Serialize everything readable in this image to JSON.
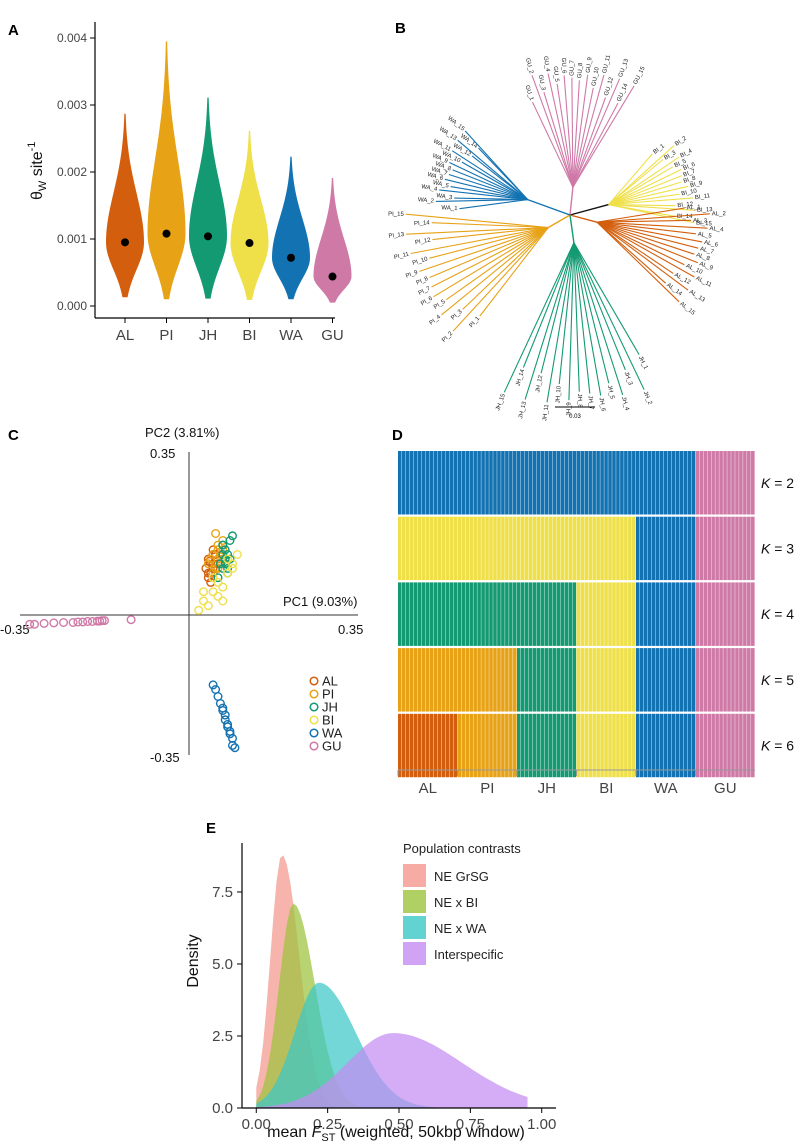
{
  "colors": {
    "AL": "#d35f0e",
    "PI": "#e7a216",
    "JH": "#149a72",
    "BI": "#efe04a",
    "WA": "#1372b2",
    "GU": "#cf79a7"
  },
  "panels": {
    "A": "A",
    "B": "B",
    "C": "C",
    "D": "D",
    "E": "E"
  },
  "chart_data": [
    {
      "id": "A",
      "type": "violin",
      "ylabel_main": "θ",
      "ylabel_sub": "W",
      "ylabel_rest": " site",
      "ylabel_sup": "-1",
      "ylim": [
        0,
        0.004
      ],
      "yticks": [
        "0.000",
        "0.001",
        "0.002",
        "0.003",
        "0.004"
      ],
      "categories": [
        "AL",
        "PI",
        "JH",
        "BI",
        "WA",
        "GU"
      ],
      "medians": [
        0.00095,
        0.00108,
        0.00104,
        0.00094,
        0.00072,
        0.00044
      ],
      "min": [
        0.00013,
        0.0001,
        0.00011,
        9e-05,
        0.0001,
        5e-05
      ],
      "max": [
        0.00287,
        0.00395,
        0.00311,
        0.00262,
        0.00223,
        0.00191
      ]
    },
    {
      "id": "B",
      "type": "tree",
      "scale_label": "0.03",
      "groups": [
        {
          "name": "GU",
          "tips": [
            "GU_1",
            "GU_2",
            "GU_3",
            "GU_4",
            "GU_5",
            "GU_6",
            "GU_7",
            "GU_8",
            "GU_9",
            "GU_10",
            "GU_11",
            "GU_12",
            "GU_13",
            "GU_14",
            "GU_15"
          ]
        },
        {
          "name": "BI",
          "tips": [
            "BI_1",
            "BI_2",
            "BI_3",
            "BI_4",
            "BI_5",
            "BI_6",
            "BI_7",
            "BI_8",
            "BI_9",
            "BI_10",
            "BI_11",
            "BI_12",
            "BI_13",
            "BI_14",
            "BI_15"
          ]
        },
        {
          "name": "AL",
          "tips": [
            "AL_1",
            "AL_2",
            "AL_3",
            "AL_4",
            "AL_5",
            "AL_6",
            "AL_7",
            "AL_8",
            "AL_9",
            "AL_10",
            "AL_11",
            "AL_12",
            "AL_13",
            "AL_14",
            "AL_15"
          ]
        },
        {
          "name": "JH",
          "tips": [
            "JH_1",
            "JH_2",
            "JH_3",
            "JH_4",
            "JH_5",
            "JH_6",
            "JH_7",
            "JH_8",
            "JH_9",
            "JH_10",
            "JH_11",
            "JH_12",
            "JH_13",
            "JH_14",
            "JH_15"
          ]
        },
        {
          "name": "PI",
          "tips": [
            "PI_1",
            "PI_2",
            "PI_3",
            "PI_4",
            "PI_5",
            "PI_6",
            "PI_7",
            "PI_8",
            "PI_9",
            "PI_10",
            "PI_11",
            "PI_12",
            "PI_13",
            "PI_14",
            "PI_15"
          ]
        },
        {
          "name": "WA",
          "tips": [
            "WA_1",
            "WA_2",
            "WA_3",
            "WA_4",
            "WA_5",
            "WA_6",
            "WA_7",
            "WA_8",
            "WA_9",
            "WA_10",
            "WA_11",
            "WA_12",
            "WA_13",
            "WA_14",
            "WA_15"
          ]
        }
      ]
    },
    {
      "id": "C",
      "type": "scatter",
      "xlabel": "PC1 (9.03%)",
      "ylabel": "PC2 (3.81%)",
      "xlim": [
        -0.35,
        0.35
      ],
      "ylim": [
        -0.35,
        0.35
      ],
      "xtick_labels": [
        "-0.35",
        "0.35"
      ],
      "ytick_labels": [
        "0.35",
        "-0.35"
      ],
      "legend": [
        "AL",
        "PI",
        "JH",
        "BI",
        "WA",
        "GU"
      ],
      "series": [
        {
          "name": "AL",
          "x": [
            0.04,
            0.05,
            0.055,
            0.045,
            0.06,
            0.05,
            0.04,
            0.035,
            0.06,
            0.05,
            0.045,
            0.04,
            0.055,
            0.05,
            0.042
          ],
          "y": [
            0.12,
            0.13,
            0.1,
            0.09,
            0.11,
            0.14,
            0.08,
            0.1,
            0.12,
            0.11,
            0.07,
            0.09,
            0.13,
            0.1,
            0.115
          ]
        },
        {
          "name": "PI",
          "x": [
            0.05,
            0.06,
            0.07,
            0.065,
            0.055,
            0.045,
            0.07,
            0.06,
            0.05,
            0.065,
            0.04,
            0.06,
            0.07,
            0.055,
            0.06
          ],
          "y": [
            0.13,
            0.12,
            0.14,
            0.11,
            0.1,
            0.12,
            0.16,
            0.15,
            0.09,
            0.13,
            0.11,
            0.1,
            0.12,
            0.175,
            0.14
          ]
        },
        {
          "name": "JH",
          "x": [
            0.07,
            0.08,
            0.075,
            0.085,
            0.065,
            0.07,
            0.08,
            0.09,
            0.075,
            0.06,
            0.07,
            0.085,
            0.08,
            0.075,
            0.07
          ],
          "y": [
            0.15,
            0.13,
            0.12,
            0.16,
            0.11,
            0.1,
            0.09,
            0.17,
            0.14,
            0.08,
            0.13,
            0.12,
            0.1,
            0.11,
            0.15
          ]
        },
        {
          "name": "BI",
          "x": [
            0.02,
            0.03,
            0.05,
            0.06,
            0.08,
            0.09,
            0.07,
            0.04,
            0.06,
            0.05,
            0.03,
            0.08,
            0.09,
            0.1,
            0.07
          ],
          "y": [
            0.01,
            0.03,
            0.05,
            0.07,
            0.09,
            0.11,
            0.06,
            0.02,
            0.04,
            0.08,
            0.05,
            0.12,
            0.1,
            0.13,
            0.03
          ]
        },
        {
          "name": "WA",
          "x": [
            0.05,
            0.055,
            0.06,
            0.065,
            0.07,
            0.07,
            0.075,
            0.075,
            0.08,
            0.08,
            0.085,
            0.085,
            0.09,
            0.09,
            0.095
          ],
          "y": [
            -0.15,
            -0.16,
            -0.175,
            -0.19,
            -0.2,
            -0.205,
            -0.215,
            -0.225,
            -0.235,
            -0.24,
            -0.25,
            -0.255,
            -0.265,
            -0.28,
            -0.285
          ]
        },
        {
          "name": "GU",
          "x": [
            -0.33,
            -0.32,
            -0.3,
            -0.28,
            -0.26,
            -0.24,
            -0.23,
            -0.22,
            -0.21,
            -0.2,
            -0.19,
            -0.185,
            -0.18,
            -0.175,
            -0.12
          ],
          "y": [
            -0.02,
            -0.02,
            -0.018,
            -0.017,
            -0.016,
            -0.016,
            -0.015,
            -0.015,
            -0.014,
            -0.014,
            -0.013,
            -0.013,
            -0.012,
            -0.012,
            -0.01
          ]
        }
      ]
    },
    {
      "id": "D",
      "type": "structure-barplot",
      "categories": [
        "AL",
        "PI",
        "JH",
        "BI",
        "WA",
        "GU"
      ],
      "individuals_per_group": 15,
      "rows": [
        {
          "label_k": "K",
          "label_rest": " = 2",
          "assign": [
            "WA",
            "WA",
            "WA",
            "WA",
            "WA",
            "GU"
          ]
        },
        {
          "label_k": "K",
          "label_rest": " = 3",
          "assign": [
            "BI",
            "BI",
            "BI",
            "BI",
            "WA",
            "GU"
          ]
        },
        {
          "label_k": "K",
          "label_rest": " = 4",
          "assign": [
            "JH",
            "JH",
            "JH",
            "BI",
            "WA",
            "GU"
          ]
        },
        {
          "label_k": "K",
          "label_rest": " = 5",
          "assign": [
            "PI",
            "PI",
            "JH",
            "BI",
            "WA",
            "GU"
          ]
        },
        {
          "label_k": "K",
          "label_rest": " = 6",
          "assign": [
            "AL",
            "PI",
            "JH",
            "BI",
            "WA",
            "GU"
          ]
        }
      ]
    },
    {
      "id": "E",
      "type": "area",
      "xlabel_pre": "mean ",
      "xlabel_italic": "F",
      "xlabel_sub": "ST",
      "xlabel_post": " (weighted, 50kbp window)",
      "ylabel": "Density",
      "xlim": [
        -0.05,
        1.05
      ],
      "ylim": [
        0,
        9.2
      ],
      "xticks": [
        "0.00",
        "0.25",
        "0.50",
        "0.75",
        "1.00"
      ],
      "yticks": [
        "0.0",
        "2.5",
        "5.0",
        "7.5"
      ],
      "legend_title": "Population contrasts",
      "series": [
        {
          "name": "NE GrSG",
          "color": "#f4978e",
          "mean": 0.09,
          "sd": 0.04,
          "peak": 8.8
        },
        {
          "name": "NE x BI",
          "color": "#9cc43c",
          "mean": 0.13,
          "sd": 0.05,
          "peak": 7.1
        },
        {
          "name": "NE x WA",
          "color": "#3cc8c6",
          "mean": 0.22,
          "sd": 0.085,
          "peak": 4.35
        },
        {
          "name": "Interspecific",
          "color": "#c58cf2",
          "mean": 0.48,
          "sd": 0.16,
          "peak": 2.6
        }
      ]
    }
  ]
}
